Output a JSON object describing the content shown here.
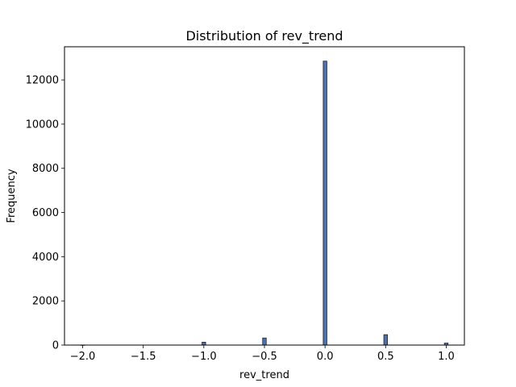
{
  "chart_data": {
    "type": "bar",
    "title": "Distribution of rev_trend",
    "xlabel": "rev_trend",
    "ylabel": "Frequency",
    "xlim": [
      -2.15,
      1.15
    ],
    "ylim": [
      0,
      13500
    ],
    "xticks": [
      -2.0,
      -1.5,
      -1.0,
      -0.5,
      0.0,
      0.5,
      1.0
    ],
    "xtick_labels": [
      "−2.0",
      "−1.5",
      "−1.0",
      "−0.5",
      "0.0",
      "0.5",
      "1.0"
    ],
    "yticks": [
      0,
      2000,
      4000,
      6000,
      8000,
      10000,
      12000
    ],
    "ytick_labels": [
      "0",
      "2000",
      "4000",
      "6000",
      "8000",
      "10000",
      "12000"
    ],
    "bin_width": 0.03,
    "series": [
      {
        "bins": [
          {
            "x": -2.0,
            "count": 5
          },
          {
            "x": -1.0,
            "count": 130
          },
          {
            "x": -0.5,
            "count": 320
          },
          {
            "x": 0.0,
            "count": 12850
          },
          {
            "x": 0.5,
            "count": 470
          },
          {
            "x": 1.0,
            "count": 90
          }
        ]
      }
    ],
    "bar_color": "#4c72b0",
    "edge_color": "#1f1f1f",
    "grid": false,
    "legend": "none"
  }
}
